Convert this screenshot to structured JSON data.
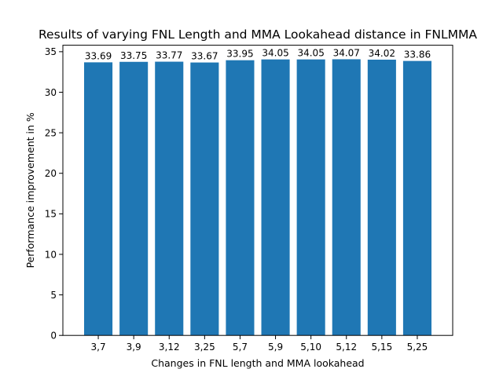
{
  "chart_data": {
    "type": "bar",
    "title": "Results of varying FNL Length and MMA Lookahead distance in FNLMMA",
    "xlabel": "Changes in FNL length and MMA lookahead",
    "ylabel": "Performance improvement in %",
    "categories": [
      "3,7",
      "3,9",
      "3,12",
      "3,25",
      "5,7",
      "5,9",
      "5,10",
      "5,12",
      "5,15",
      "5,25"
    ],
    "values": [
      33.69,
      33.75,
      33.77,
      33.67,
      33.95,
      34.05,
      34.05,
      34.07,
      34.02,
      33.86
    ],
    "data_labels": [
      "33.69",
      "33.75",
      "33.77",
      "33.67",
      "33.95",
      "34.05",
      "34.05",
      "34.07",
      "34.02",
      "33.86"
    ],
    "ylim": [
      0,
      35.8
    ],
    "yticks": [
      0,
      5,
      10,
      15,
      20,
      25,
      30,
      35
    ],
    "grid": false,
    "legend": "none",
    "bar_color": "#1f77b4"
  }
}
